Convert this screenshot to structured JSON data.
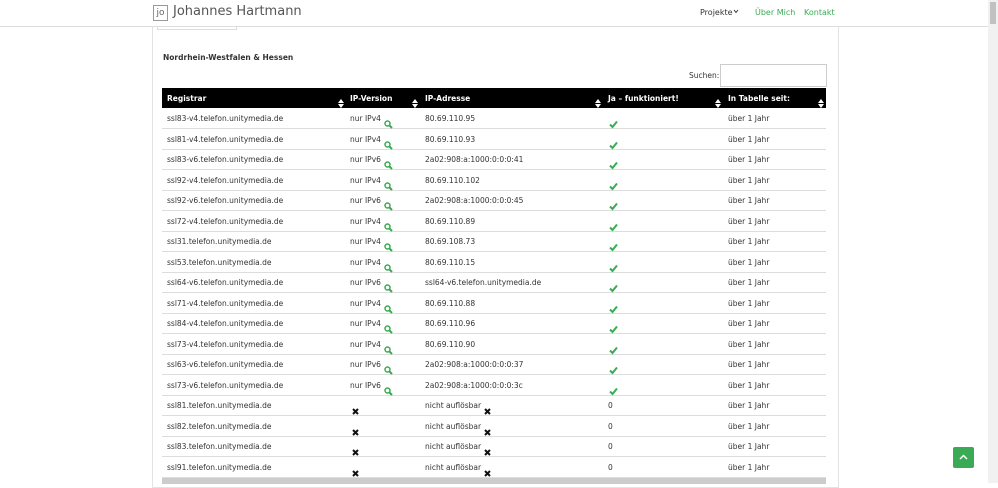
{
  "header": {
    "logo": "jo",
    "brand": "Johannes Hartmann",
    "nav": [
      "Projekte",
      "Über Mich",
      "Kontakt"
    ]
  },
  "section": {
    "title": "Nordrhein-Westfalen & Hessen",
    "search_label": "Suchen:"
  },
  "table": {
    "columns": [
      "Registrar",
      "IP-Version",
      "IP-Adresse",
      "Ja – funktioniert!",
      "In Tabelle seit:"
    ],
    "rows": [
      [
        "ssl83-v4.telefon.unitymedia.de",
        "nur IPv4",
        "80.69.110.95",
        null,
        "über 1 Jahr"
      ],
      [
        "ssl81-v4.telefon.unitymedia.de",
        "nur IPv4",
        "80.69.110.93",
        null,
        "über 1 Jahr"
      ],
      [
        "ssl83-v6.telefon.unitymedia.de",
        "nur IPv6",
        "2a02:908:a:1000:0:0:0:41",
        null,
        "über 1 Jahr"
      ],
      [
        "ssl92-v4.telefon.unitymedia.de",
        "nur IPv4",
        "80.69.110.102",
        null,
        "über 1 Jahr"
      ],
      [
        "ssl92-v6.telefon.unitymedia.de",
        "nur IPv6",
        "2a02:908:a:1000:0:0:0:45",
        null,
        "über 1 Jahr"
      ],
      [
        "ssl72-v4.telefon.unitymedia.de",
        "nur IPv4",
        "80.69.110.89",
        null,
        "über 1 Jahr"
      ],
      [
        "ssl31.telefon.unitymedia.de",
        "nur IPv4",
        "80.69.108.73",
        null,
        "über 1 Jahr"
      ],
      [
        "ssl53.telefon.unitymedia.de",
        "nur IPv4",
        "80.69.110.15",
        null,
        "über 1 Jahr"
      ],
      [
        "ssl64-v6.telefon.unitymedia.de",
        "nur IPv6",
        "ssl64-v6.telefon.unitymedia.de",
        null,
        "über 1 Jahr"
      ],
      [
        "ssl71-v4.telefon.unitymedia.de",
        "nur IPv4",
        "80.69.110.88",
        null,
        "über 1 Jahr"
      ],
      [
        "ssl84-v4.telefon.unitymedia.de",
        "nur IPv4",
        "80.69.110.96",
        null,
        "über 1 Jahr"
      ],
      [
        "ssl73-v4.telefon.unitymedia.de",
        "nur IPv4",
        "80.69.110.90",
        null,
        "über 1 Jahr"
      ],
      [
        "ssl63-v6.telefon.unitymedia.de",
        "nur IPv6",
        "2a02:908:a:1000:0:0:0:37",
        null,
        "über 1 Jahr"
      ],
      [
        "ssl73-v6.telefon.unitymedia.de",
        "nur IPv6",
        "2a02:908:a:1000:0:0:0:3c",
        null,
        "über 1 Jahr"
      ],
      [
        "ssl81.telefon.unitymedia.de",
        null,
        "nicht auflösbar",
        "0",
        "über 1 Jahr"
      ],
      [
        "ssl82.telefon.unitymedia.de",
        null,
        "nicht auflösbar",
        "0",
        "über 1 Jahr"
      ],
      [
        "ssl83.telefon.unitymedia.de",
        null,
        "nicht auflösbar",
        "0",
        "über 1 Jahr"
      ],
      [
        "ssl91.telefon.unitymedia.de",
        null,
        "nicht auflösbar",
        "0",
        "über 1 Jahr"
      ]
    ]
  }
}
